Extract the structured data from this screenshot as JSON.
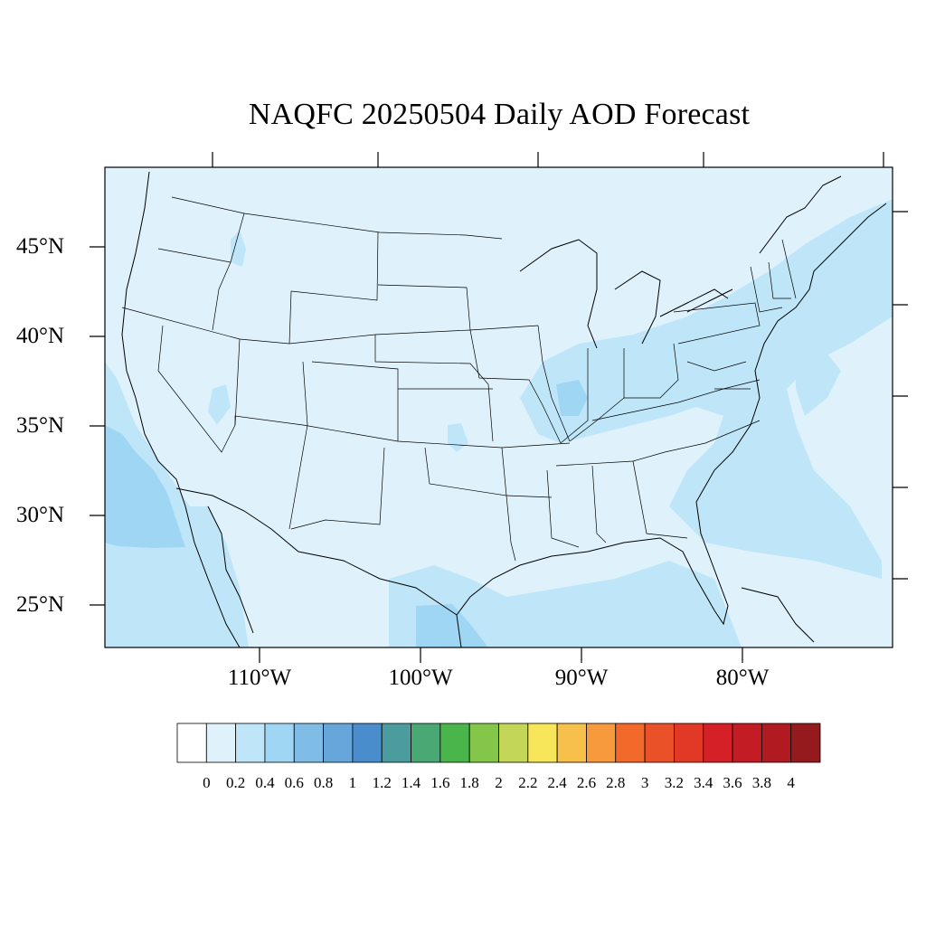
{
  "title": "NAQFC 20250504 Daily AOD Forecast",
  "lat_labels": [
    "45°N",
    "40°N",
    "35°N",
    "30°N",
    "25°N"
  ],
  "lon_labels": [
    "110°W",
    "100°W",
    "90°W",
    "80°W"
  ],
  "colorbar": {
    "colors": [
      "#ffffff",
      "#dff2fb",
      "#bfe6f8",
      "#9fd6f3",
      "#80bde6",
      "#67a6da",
      "#4a8dcc",
      "#4b9c9e",
      "#4aa874",
      "#4ab54a",
      "#84c64a",
      "#c3d658",
      "#f7e55a",
      "#f7c04a",
      "#f79a3d",
      "#f2692a",
      "#ea5128",
      "#e03a26",
      "#d62028",
      "#c41c24",
      "#b21a22",
      "#951a1e"
    ],
    "tick_labels": [
      "0",
      "0.2",
      "0.4",
      "0.6",
      "0.8",
      "1",
      "1.2",
      "1.4",
      "1.6",
      "1.8",
      "2",
      "2.2",
      "2.4",
      "2.6",
      "2.8",
      "3",
      "3.2",
      "3.4",
      "3.6",
      "3.8",
      "4"
    ]
  },
  "map_colors": {
    "background": "#dff2fb",
    "aod_low": "#bfe6f8",
    "aod_mid": "#9fd6f3",
    "boundary": "#000000"
  }
}
